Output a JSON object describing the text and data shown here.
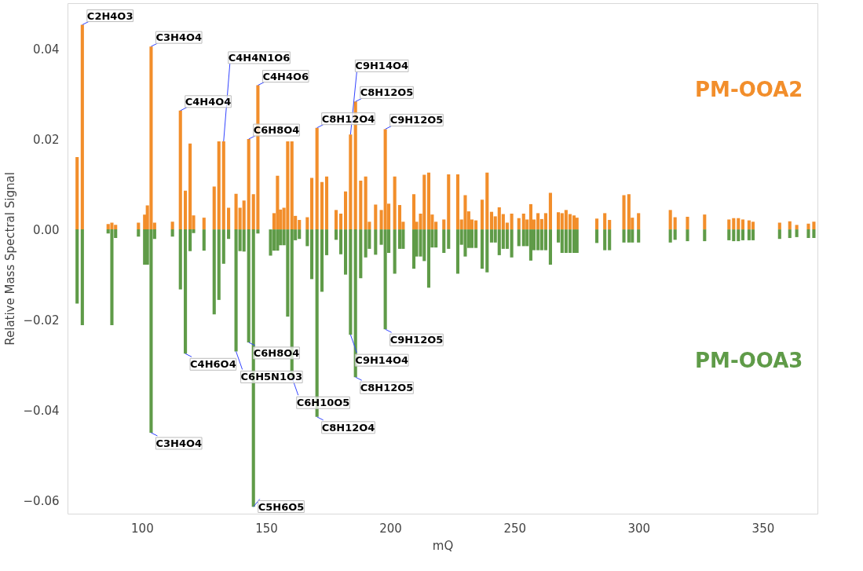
{
  "chart_data": {
    "type": "bar",
    "xlabel": "mQ",
    "ylabel": "Relative Mass Spectral Signal",
    "x": [
      73.7,
      75.8,
      86.2,
      87.7,
      89.2,
      98.4,
      100.9,
      102.0,
      103.5,
      104.9,
      112.1,
      115.3,
      117.3,
      119.2,
      120.6,
      124.8,
      128.9,
      130.8,
      132.7,
      134.7,
      137.7,
      139.3,
      140.9,
      142.8,
      144.7,
      146.5,
      151.6,
      153.0,
      154.4,
      155.6,
      157.0,
      158.5,
      160.2,
      161.6,
      163.2,
      166.4,
      168.2,
      170.3,
      172.3,
      174.2,
      178.0,
      179.9,
      181.8,
      183.8,
      185.8,
      187.9,
      189.9,
      191.4,
      193.9,
      196.2,
      197.8,
      199.2,
      201.6,
      203.6,
      205.0,
      209.3,
      210.4,
      212.0,
      213.5,
      215.3,
      216.7,
      218.2,
      221.4,
      223.3,
      227.0,
      228.5,
      230.0,
      231.4,
      232.7,
      234.3,
      236.8,
      238.8,
      240.6,
      242.1,
      243.7,
      245.3,
      246.9,
      248.7,
      251.6,
      253.5,
      254.9,
      256.4,
      257.7,
      259.3,
      260.8,
      262.4,
      264.3,
      267.5,
      269.0,
      270.6,
      272.2,
      273.8,
      275.0,
      283.0,
      286.2,
      288.1,
      293.9,
      295.9,
      297.3,
      299.8,
      312.6,
      314.5,
      319.5,
      326.4,
      336.2,
      338.1,
      340.0,
      341.8,
      344.3,
      345.9,
      356.6,
      360.7,
      363.5,
      368.2,
      370.4
    ],
    "series": [
      {
        "name": "PM-OOA2",
        "color": "#f28e2b",
        "values": [
          0.016,
          0.0453,
          0.0012,
          0.0015,
          0.001,
          0.0015,
          0.0033,
          0.0053,
          0.0405,
          0.0015,
          0.0017,
          0.0263,
          0.0086,
          0.019,
          0.0031,
          0.0026,
          0.0095,
          0.0195,
          0.0195,
          0.0048,
          0.0079,
          0.0048,
          0.0064,
          0.02,
          0.0078,
          0.0319,
          0.0,
          0.0036,
          0.0119,
          0.0044,
          0.0048,
          0.0195,
          0.0195,
          0.003,
          0.0021,
          0.0027,
          0.0114,
          0.0225,
          0.0105,
          0.0117,
          0.0043,
          0.0035,
          0.0084,
          0.021,
          0.0283,
          0.0108,
          0.0117,
          0.0017,
          0.0055,
          0.0043,
          0.0222,
          0.0057,
          0.0117,
          0.0054,
          0.0017,
          0.0078,
          0.0017,
          0.0035,
          0.0121,
          0.0126,
          0.0033,
          0.0017,
          0.0022,
          0.0122,
          0.0122,
          0.0022,
          0.0076,
          0.004,
          0.0022,
          0.002,
          0.0066,
          0.0126,
          0.0039,
          0.0029,
          0.0049,
          0.0034,
          0.0015,
          0.0035,
          0.0025,
          0.0035,
          0.0022,
          0.0056,
          0.0022,
          0.0036,
          0.0023,
          0.0036,
          0.0081,
          0.0038,
          0.0036,
          0.0043,
          0.0034,
          0.0031,
          0.0026,
          0.0024,
          0.0036,
          0.0021,
          0.0076,
          0.0078,
          0.0026,
          0.0036,
          0.0043,
          0.0027,
          0.0028,
          0.0033,
          0.0022,
          0.0025,
          0.0025,
          0.0022,
          0.002,
          0.0017,
          0.0015,
          0.0018,
          0.001,
          0.0013,
          0.0017
        ]
      },
      {
        "name": "PM-OOA3",
        "color": "#5f9b48",
        "values": [
          -0.0164,
          -0.0212,
          -0.0009,
          -0.0212,
          -0.0019,
          -0.0016,
          -0.0078,
          -0.0078,
          -0.045,
          -0.0021,
          -0.0016,
          -0.0133,
          -0.0275,
          -0.0048,
          -0.0008,
          -0.0047,
          -0.0188,
          -0.0156,
          -0.0076,
          -0.0021,
          -0.027,
          -0.0048,
          -0.0049,
          -0.025,
          -0.0614,
          -0.0009,
          -0.0058,
          -0.0047,
          -0.0047,
          -0.0035,
          -0.0035,
          -0.0193,
          -0.0327,
          -0.0024,
          -0.0021,
          -0.0037,
          -0.011,
          -0.0415,
          -0.0138,
          -0.0057,
          -0.0023,
          -0.0055,
          -0.01,
          -0.0233,
          -0.0327,
          -0.0108,
          -0.0062,
          -0.0043,
          -0.0056,
          -0.0034,
          -0.0221,
          -0.0052,
          -0.0098,
          -0.0043,
          -0.0043,
          -0.0087,
          -0.006,
          -0.006,
          -0.007,
          -0.0129,
          -0.004,
          -0.004,
          -0.0052,
          -0.0043,
          -0.0098,
          -0.0034,
          -0.006,
          -0.0041,
          -0.0041,
          -0.0041,
          -0.0087,
          -0.0095,
          -0.0029,
          -0.0029,
          -0.0057,
          -0.0043,
          -0.0043,
          -0.0062,
          -0.0037,
          -0.0037,
          -0.0037,
          -0.0069,
          -0.0046,
          -0.0046,
          -0.0046,
          -0.0046,
          -0.0078,
          -0.0029,
          -0.0052,
          -0.0052,
          -0.0052,
          -0.0052,
          -0.0052,
          -0.003,
          -0.0046,
          -0.0046,
          -0.0029,
          -0.0029,
          -0.0029,
          -0.0029,
          -0.0029,
          -0.0023,
          -0.0026,
          -0.0026,
          -0.0024,
          -0.0026,
          -0.0026,
          -0.0024,
          -0.0024,
          -0.0024,
          -0.0021,
          -0.0019,
          -0.0017,
          -0.0019,
          -0.0019
        ]
      }
    ],
    "xlim": [
      70,
      372
    ],
    "ylim": [
      -0.063,
      0.05
    ],
    "xticks": [
      100,
      150,
      200,
      250,
      300,
      350
    ],
    "yticks": [
      {
        "value": -0.06,
        "label": "−0.06"
      },
      {
        "value": -0.04,
        "label": "−0.04"
      },
      {
        "value": -0.02,
        "label": "−0.02"
      },
      {
        "value": 0,
        "label": "0.00"
      },
      {
        "value": 0.02,
        "label": "0.02"
      },
      {
        "value": 0.04,
        "label": "0.04"
      }
    ],
    "grid": false,
    "legend": false,
    "stacked": true,
    "annotations": [
      {
        "text": "C2H4O3",
        "x": 75.8,
        "y": 0.0453
      },
      {
        "text": "C3H4O4",
        "x": 103.5,
        "y": 0.0405
      },
      {
        "text": "C4H4O4",
        "x": 115.3,
        "y": 0.0263
      },
      {
        "text": "C4H4O6",
        "x": 146.5,
        "y": 0.0319
      },
      {
        "text": "C6H8O4",
        "x": 142.8,
        "y": 0.02
      },
      {
        "text": "C4H4N1O6",
        "x": 132.7,
        "y": 0.0195
      },
      {
        "text": "C8H12O4",
        "x": 170.3,
        "y": 0.0225
      },
      {
        "text": "C8H12O5",
        "x": 185.8,
        "y": 0.0283
      },
      {
        "text": "C9H12O5",
        "x": 197.8,
        "y": 0.0222
      },
      {
        "text": "C9H14O4",
        "x": 183.8,
        "y": 0.021
      },
      {
        "text": "C4H6O4",
        "x": 117.3,
        "y": -0.0275
      },
      {
        "text": "C3H4O4",
        "x": 103.5,
        "y": -0.045
      },
      {
        "text": "C6H8O4",
        "x": 142.8,
        "y": -0.025
      },
      {
        "text": "C6H5N1O3",
        "x": 137.7,
        "y": -0.027
      },
      {
        "text": "C6H10O5",
        "x": 160.2,
        "y": -0.0327
      },
      {
        "text": "C5H6O5",
        "x": 144.7,
        "y": -0.0614
      },
      {
        "text": "C8H12O4",
        "x": 170.3,
        "y": -0.0415
      },
      {
        "text": "C9H12O5",
        "x": 197.8,
        "y": -0.0221
      },
      {
        "text": "C9H14O4",
        "x": 183.8,
        "y": -0.0233
      },
      {
        "text": "C8H12O5",
        "x": 185.8,
        "y": -0.0327
      }
    ]
  }
}
